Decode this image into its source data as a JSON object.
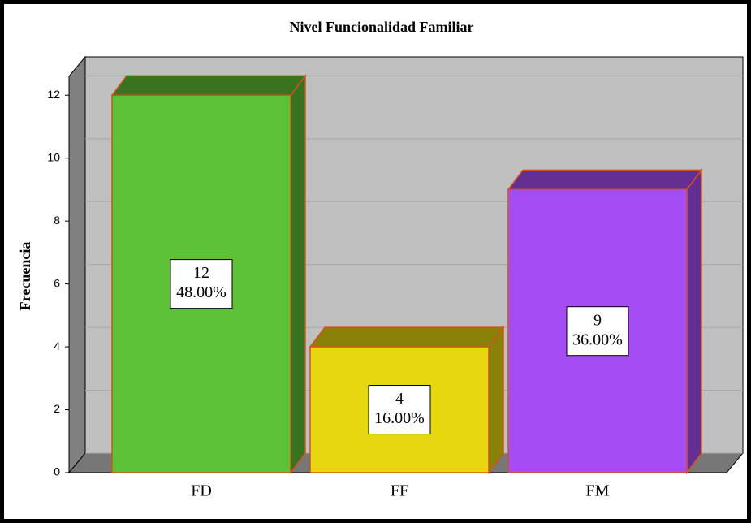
{
  "chart_data": {
    "type": "bar3d",
    "title": "Nivel Funcionalidad Familiar",
    "y_label": "Frecuencia",
    "categories": [
      "FD",
      "FF",
      "FM"
    ],
    "values": [
      12,
      4,
      9
    ],
    "percent_values": [
      48,
      16,
      36
    ],
    "percent_labels": [
      "48.00%",
      "16.00%",
      "36.00%"
    ],
    "colors": [
      "#5ec236",
      "#e6d70f",
      "#a64cf4"
    ],
    "ylim": [
      0,
      12.6
    ],
    "yticks": [
      0,
      2,
      4,
      6,
      8,
      10,
      12
    ],
    "grid": true
  }
}
